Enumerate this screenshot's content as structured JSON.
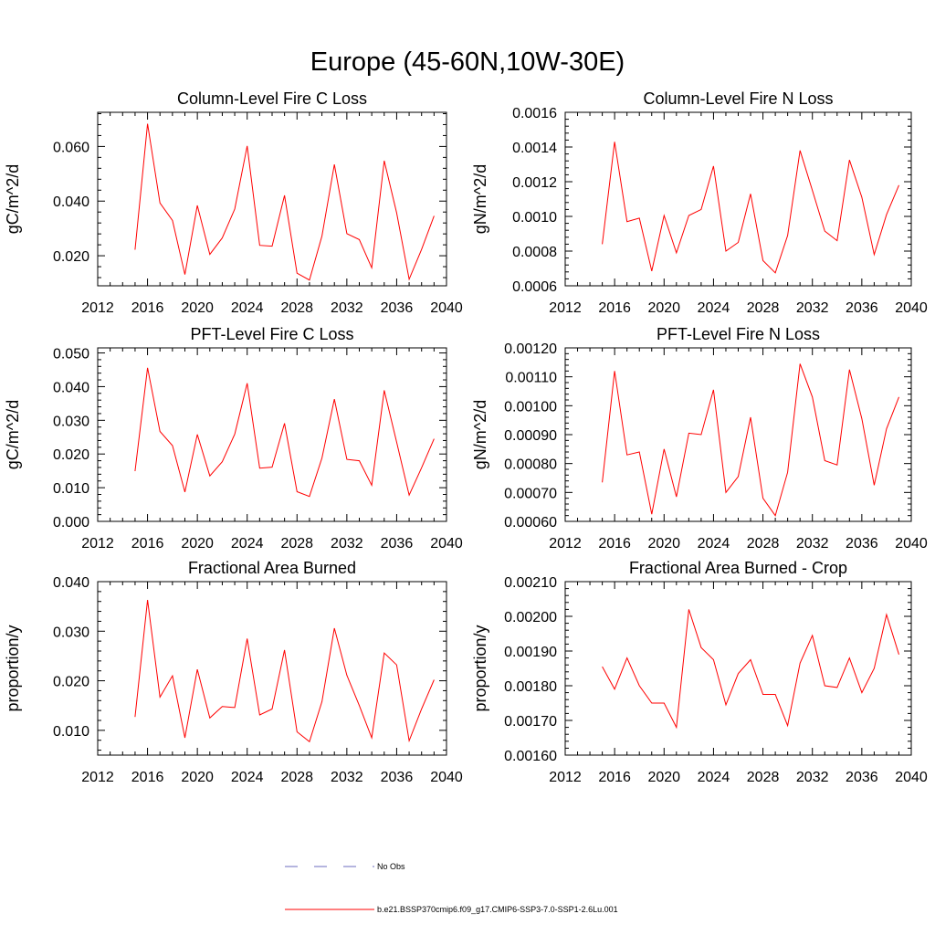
{
  "figure": {
    "title": "Europe (45-60N,10W-30E)"
  },
  "legend": {
    "items": [
      {
        "label": "No Obs",
        "style": "dashed",
        "color": "#6b6bbf"
      },
      {
        "label": "b.e21.BSSP370cmip6.f09_g17.CMIP6-SSP3-7.0-SSP1-2.6Lu.001",
        "style": "solid",
        "color": "#ff0000"
      }
    ]
  },
  "chart_data": [
    {
      "type": "line",
      "title": "Column-Level Fire C Loss",
      "ylabel": "gC/m^2/d",
      "xlim": [
        2012,
        2040
      ],
      "xticks": [
        2012,
        2016,
        2020,
        2024,
        2028,
        2032,
        2036,
        2040
      ],
      "xtick_labels": [
        "2012",
        "2016",
        "2020",
        "2024",
        "2028",
        "2032",
        "2036",
        "2040"
      ],
      "ylim": [
        0.009,
        0.0725
      ],
      "yticks": [
        0.02,
        0.04,
        0.06
      ],
      "ytick_labels": [
        "0.020",
        "0.040",
        "0.060"
      ],
      "color": "#ff0000",
      "x": [
        2015,
        2016,
        2017,
        2018,
        2019,
        2020,
        2021,
        2022,
        2023,
        2024,
        2025,
        2026,
        2027,
        2028,
        2029,
        2030,
        2031,
        2032,
        2033,
        2034,
        2035,
        2036,
        2037,
        2038,
        2039
      ],
      "y": [
        0.0222,
        0.0683,
        0.0393,
        0.0329,
        0.0131,
        0.0384,
        0.0205,
        0.0265,
        0.0371,
        0.0602,
        0.0238,
        0.0235,
        0.0421,
        0.0136,
        0.0111,
        0.0272,
        0.0534,
        0.0281,
        0.0259,
        0.0156,
        0.0548,
        0.0357,
        0.0114,
        0.0223,
        0.0346
      ]
    },
    {
      "type": "line",
      "title": "Column-Level Fire N Loss",
      "ylabel": "gN/m^2/d",
      "xlim": [
        2012,
        2040
      ],
      "xticks": [
        2012,
        2016,
        2020,
        2024,
        2028,
        2032,
        2036,
        2040
      ],
      "xtick_labels": [
        "2012",
        "2016",
        "2020",
        "2024",
        "2028",
        "2032",
        "2036",
        "2040"
      ],
      "ylim": [
        0.0006,
        0.0016
      ],
      "yticks": [
        0.0006,
        0.0008,
        0.001,
        0.0012,
        0.0014,
        0.0016
      ],
      "ytick_labels": [
        "0.0006",
        "0.0008",
        "0.0010",
        "0.0012",
        "0.0014",
        "0.0016"
      ],
      "color": "#ff0000",
      "x": [
        2015,
        2016,
        2017,
        2018,
        2019,
        2020,
        2021,
        2022,
        2023,
        2024,
        2025,
        2026,
        2027,
        2028,
        2029,
        2030,
        2031,
        2032,
        2033,
        2034,
        2035,
        2036,
        2037,
        2038,
        2039
      ],
      "y": [
        0.00084,
        0.00143,
        0.00097,
        0.00099,
        0.000685,
        0.001005,
        0.00079,
        0.001005,
        0.00104,
        0.00129,
        0.0008,
        0.00085,
        0.00113,
        0.000745,
        0.000675,
        0.00089,
        0.00138,
        0.00115,
        0.000915,
        0.00086,
        0.001325,
        0.00111,
        0.00078,
        0.00101,
        0.00118
      ]
    },
    {
      "type": "line",
      "title": "PFT-Level Fire C Loss",
      "ylabel": "gC/m^2/d",
      "xlim": [
        2012,
        2040
      ],
      "xticks": [
        2012,
        2016,
        2020,
        2024,
        2028,
        2032,
        2036,
        2040
      ],
      "xtick_labels": [
        "2012",
        "2016",
        "2020",
        "2024",
        "2028",
        "2032",
        "2036",
        "2040"
      ],
      "ylim": [
        0,
        0.0515
      ],
      "yticks": [
        0,
        0.01,
        0.02,
        0.03,
        0.04,
        0.05
      ],
      "ytick_labels": [
        "0.000",
        "0.010",
        "0.020",
        "0.030",
        "0.040",
        "0.050"
      ],
      "color": "#ff0000",
      "x": [
        2015,
        2016,
        2017,
        2018,
        2019,
        2020,
        2021,
        2022,
        2023,
        2024,
        2025,
        2026,
        2027,
        2028,
        2029,
        2030,
        2031,
        2032,
        2033,
        2034,
        2035,
        2036,
        2037,
        2038,
        2039
      ],
      "y": [
        0.0149,
        0.0456,
        0.0267,
        0.0225,
        0.0087,
        0.0258,
        0.0135,
        0.0177,
        0.0259,
        0.041,
        0.0158,
        0.0161,
        0.0291,
        0.0088,
        0.0074,
        0.0188,
        0.0363,
        0.0184,
        0.018,
        0.0107,
        0.0389,
        0.0235,
        0.0078,
        0.0159,
        0.0245
      ]
    },
    {
      "type": "line",
      "title": "PFT-Level Fire N Loss",
      "ylabel": "gN/m^2/d",
      "xlim": [
        2012,
        2040
      ],
      "xticks": [
        2012,
        2016,
        2020,
        2024,
        2028,
        2032,
        2036,
        2040
      ],
      "xtick_labels": [
        "2012",
        "2016",
        "2020",
        "2024",
        "2028",
        "2032",
        "2036",
        "2040"
      ],
      "ylim": [
        0.0006,
        0.0012
      ],
      "yticks": [
        0.0006,
        0.0007,
        0.0008,
        0.0009,
        0.001,
        0.0011,
        0.0012
      ],
      "ytick_labels": [
        "0.00060",
        "0.00070",
        "0.00080",
        "0.00090",
        "0.00100",
        "0.00110",
        "0.00120"
      ],
      "color": "#ff0000",
      "x": [
        2015,
        2016,
        2017,
        2018,
        2019,
        2020,
        2021,
        2022,
        2023,
        2024,
        2025,
        2026,
        2027,
        2028,
        2029,
        2030,
        2031,
        2032,
        2033,
        2034,
        2035,
        2036,
        2037,
        2038,
        2039
      ],
      "y": [
        0.000735,
        0.00112,
        0.00083,
        0.00084,
        0.000625,
        0.00085,
        0.000685,
        0.000905,
        0.0009,
        0.001055,
        0.0007,
        0.000755,
        0.00096,
        0.00068,
        0.00062,
        0.00077,
        0.001145,
        0.00103,
        0.00081,
        0.000795,
        0.001125,
        0.000955,
        0.000725,
        0.00092,
        0.00103
      ]
    },
    {
      "type": "line",
      "title": "Fractional Area Burned",
      "ylabel": "proportion/y",
      "xlim": [
        2012,
        2040
      ],
      "xticks": [
        2012,
        2016,
        2020,
        2024,
        2028,
        2032,
        2036,
        2040
      ],
      "xtick_labels": [
        "2012",
        "2016",
        "2020",
        "2024",
        "2028",
        "2032",
        "2036",
        "2040"
      ],
      "ylim": [
        0.005,
        0.04
      ],
      "yticks": [
        0.01,
        0.02,
        0.03,
        0.04
      ],
      "ytick_labels": [
        "0.010",
        "0.020",
        "0.030",
        "0.040"
      ],
      "color": "#ff0000",
      "x": [
        2015,
        2016,
        2017,
        2018,
        2019,
        2020,
        2021,
        2022,
        2023,
        2024,
        2025,
        2026,
        2027,
        2028,
        2029,
        2030,
        2031,
        2032,
        2033,
        2034,
        2035,
        2036,
        2037,
        2038,
        2039
      ],
      "y": [
        0.0127,
        0.0363,
        0.0167,
        0.021,
        0.0085,
        0.0223,
        0.0125,
        0.0148,
        0.0146,
        0.0285,
        0.0131,
        0.0143,
        0.0262,
        0.0097,
        0.0077,
        0.0158,
        0.0306,
        0.0211,
        0.015,
        0.0085,
        0.0256,
        0.0232,
        0.0079,
        0.0143,
        0.0202
      ]
    },
    {
      "type": "line",
      "title": "Fractional Area Burned - Crop",
      "ylabel": "proportion/y",
      "xlim": [
        2012,
        2040
      ],
      "xticks": [
        2012,
        2016,
        2020,
        2024,
        2028,
        2032,
        2036,
        2040
      ],
      "xtick_labels": [
        "2012",
        "2016",
        "2020",
        "2024",
        "2028",
        "2032",
        "2036",
        "2040"
      ],
      "ylim": [
        0.0016,
        0.0021
      ],
      "yticks": [
        0.0016,
        0.0017,
        0.0018,
        0.0019,
        0.002,
        0.0021
      ],
      "ytick_labels": [
        "0.00160",
        "0.00170",
        "0.00180",
        "0.00190",
        "0.00200",
        "0.00210"
      ],
      "color": "#ff0000",
      "x": [
        2015,
        2016,
        2017,
        2018,
        2019,
        2020,
        2021,
        2022,
        2023,
        2024,
        2025,
        2026,
        2027,
        2028,
        2029,
        2030,
        2031,
        2032,
        2033,
        2034,
        2035,
        2036,
        2037,
        2038,
        2039
      ],
      "y": [
        0.001855,
        0.00179,
        0.00188,
        0.0018,
        0.00175,
        0.00175,
        0.00168,
        0.00202,
        0.00191,
        0.001875,
        0.001745,
        0.001835,
        0.001875,
        0.001775,
        0.001775,
        0.001685,
        0.001865,
        0.001945,
        0.0018,
        0.001795,
        0.00188,
        0.00178,
        0.00185,
        0.002005,
        0.00189
      ]
    }
  ]
}
